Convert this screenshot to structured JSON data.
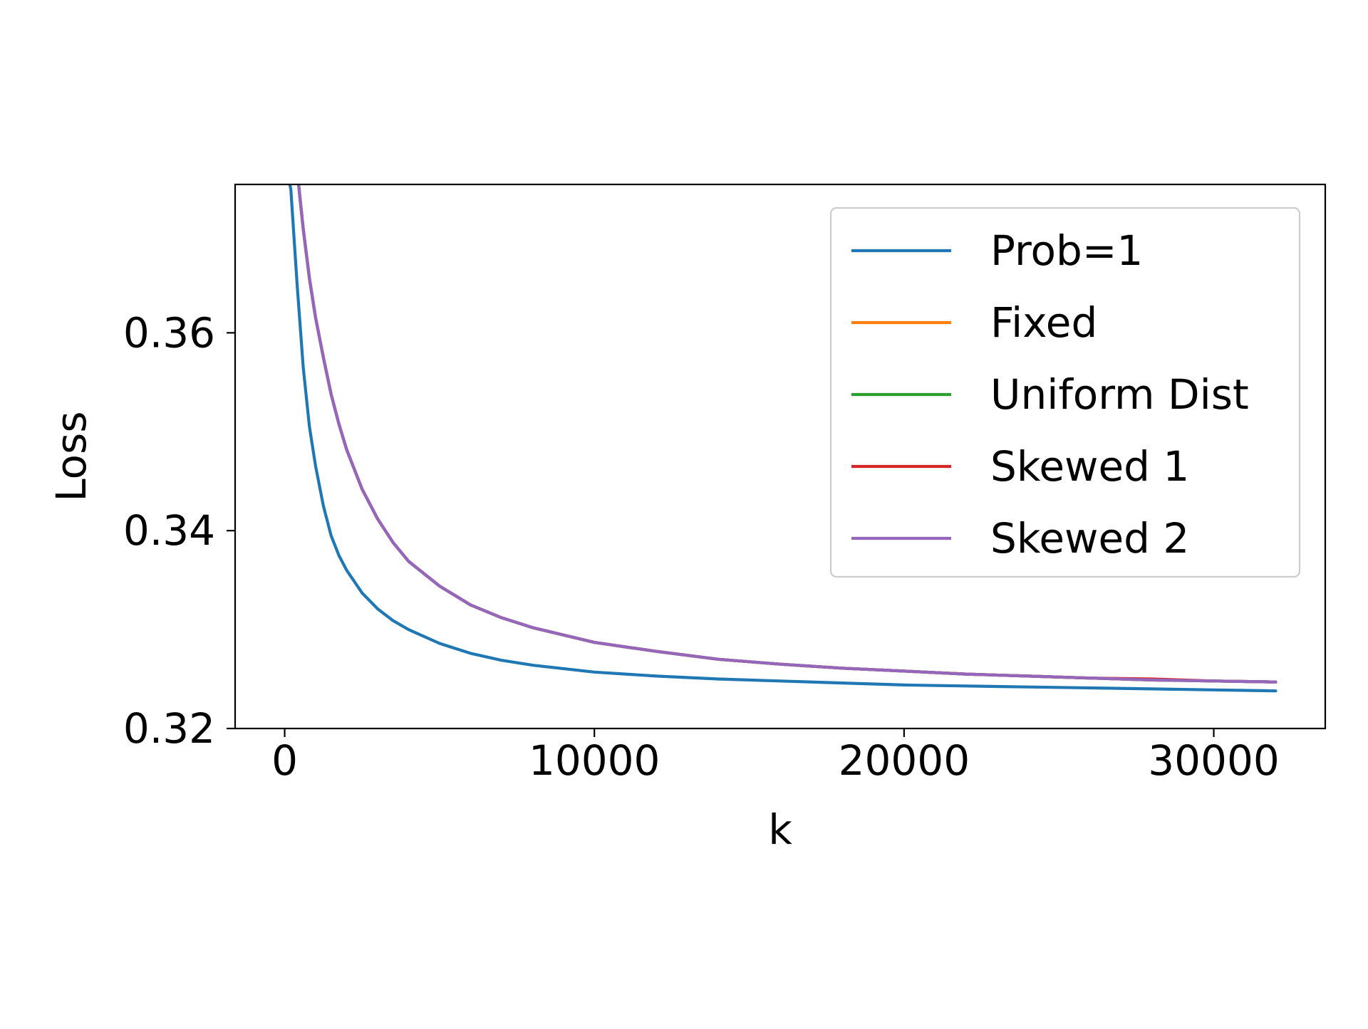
{
  "chart_data": {
    "type": "line",
    "title": "",
    "xlabel": "k",
    "ylabel": "Loss",
    "xlim": [
      -1600,
      33600
    ],
    "ylim": [
      0.32,
      0.375
    ],
    "xticks": [
      0,
      10000,
      20000,
      30000
    ],
    "xtick_labels": [
      "0",
      "10000",
      "20000",
      "30000"
    ],
    "yticks": [
      0.32,
      0.34,
      0.36
    ],
    "ytick_labels": [
      "0.32",
      "0.34",
      "0.36"
    ],
    "grid": false,
    "legend_position": "top-right",
    "x": [
      100,
      200,
      400,
      600,
      800,
      1000,
      1250,
      1500,
      1750,
      2000,
      2500,
      3000,
      3500,
      4000,
      5000,
      6000,
      7000,
      8000,
      10000,
      12000,
      14000,
      16000,
      18000,
      20000,
      22000,
      24000,
      26000,
      28000,
      30000,
      32000
    ],
    "series": [
      {
        "name": "Prob=1",
        "color": "#1f77b4",
        "values": [
          0.376,
          0.3745,
          0.365,
          0.3565,
          0.3505,
          0.3465,
          0.3425,
          0.3395,
          0.3375,
          0.336,
          0.3337,
          0.3321,
          0.3309,
          0.33,
          0.3286,
          0.3276,
          0.3269,
          0.3264,
          0.3257,
          0.3253,
          0.325,
          0.3248,
          0.3246,
          0.3244,
          0.3243,
          0.3242,
          0.3241,
          0.324,
          0.3239,
          0.3238
        ]
      },
      {
        "name": "Fixed",
        "color": "#ff7f0e",
        "values": [
          0.385,
          0.38,
          0.3765,
          0.3705,
          0.3655,
          0.3615,
          0.3575,
          0.3538,
          0.3508,
          0.3482,
          0.3442,
          0.3412,
          0.3388,
          0.3369,
          0.3344,
          0.3325,
          0.3312,
          0.3302,
          0.3287,
          0.3278,
          0.327,
          0.3265,
          0.3261,
          0.3258,
          0.3255,
          0.3253,
          0.3251,
          0.3249,
          0.3248,
          0.3247
        ]
      },
      {
        "name": "Uniform Dist",
        "color": "#2ca02c",
        "values": [
          0.385,
          0.38,
          0.3765,
          0.3705,
          0.3655,
          0.3615,
          0.3575,
          0.3538,
          0.3508,
          0.3482,
          0.3442,
          0.3412,
          0.3388,
          0.3369,
          0.3344,
          0.3325,
          0.3312,
          0.3302,
          0.3287,
          0.3278,
          0.327,
          0.3265,
          0.3261,
          0.3258,
          0.3255,
          0.3253,
          0.3251,
          0.3249,
          0.3248,
          0.3247
        ]
      },
      {
        "name": "Skewed 1",
        "color": "#d62728",
        "values": [
          0.385,
          0.38,
          0.3765,
          0.3705,
          0.3655,
          0.3615,
          0.3575,
          0.3538,
          0.3508,
          0.3482,
          0.3442,
          0.3412,
          0.3388,
          0.3369,
          0.3344,
          0.3325,
          0.3312,
          0.3302,
          0.3287,
          0.3278,
          0.327,
          0.3265,
          0.3261,
          0.3258,
          0.3255,
          0.3253,
          0.3251,
          0.325,
          0.3248,
          0.3247
        ]
      },
      {
        "name": "Skewed 2",
        "color": "#9467bd",
        "values": [
          0.385,
          0.38,
          0.3765,
          0.3705,
          0.3655,
          0.3615,
          0.3575,
          0.3538,
          0.3508,
          0.3482,
          0.3442,
          0.3412,
          0.3388,
          0.3369,
          0.3344,
          0.3325,
          0.3312,
          0.3302,
          0.3287,
          0.3278,
          0.327,
          0.3265,
          0.3261,
          0.3258,
          0.3255,
          0.3253,
          0.3251,
          0.3249,
          0.3248,
          0.3247
        ]
      }
    ]
  }
}
